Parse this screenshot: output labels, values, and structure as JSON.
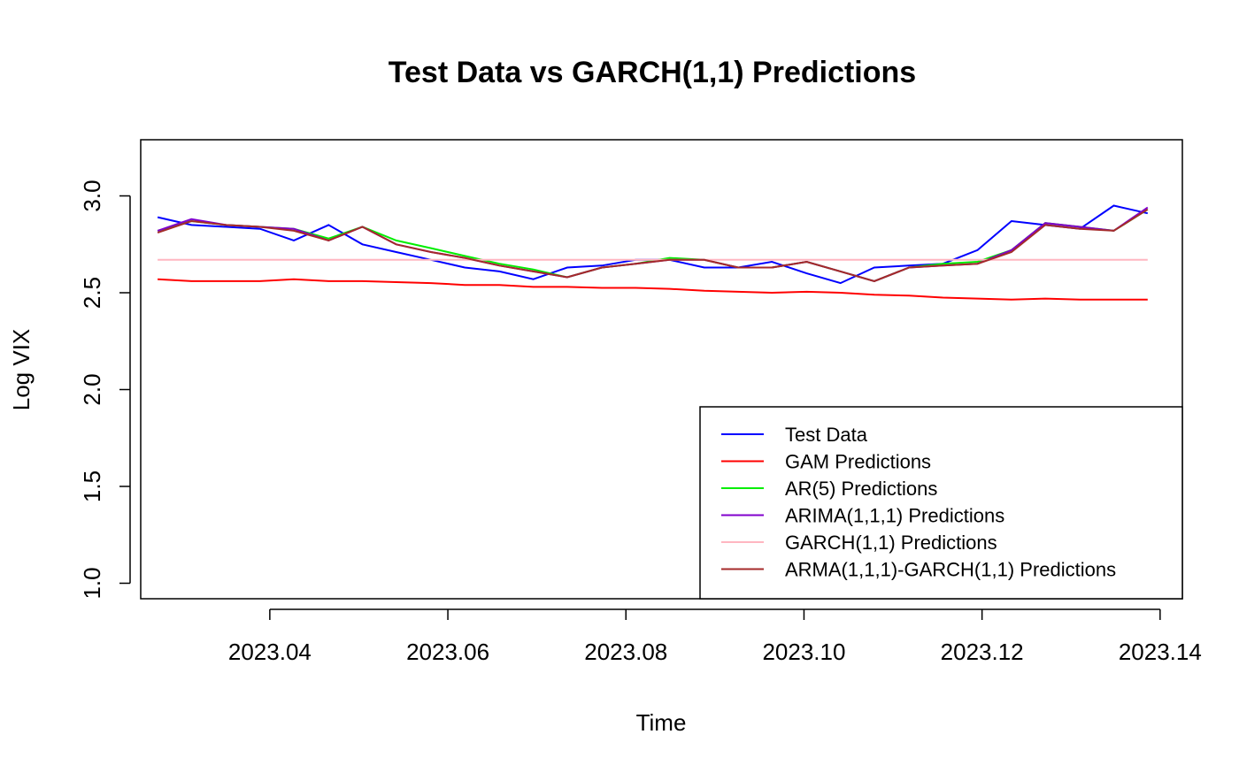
{
  "chart_data": {
    "type": "line",
    "title": "Test Data vs GARCH(1,1) Predictions",
    "xlabel": "Time",
    "ylabel": "Log VIX",
    "xlim": [
      2023.0255,
      2023.1425
    ],
    "ylim": [
      0.92,
      3.29
    ],
    "xticks": [
      2023.04,
      2023.06,
      2023.08,
      2023.1,
      2023.12,
      2023.14
    ],
    "xtick_labels": [
      "2023.04",
      "2023.06",
      "2023.08",
      "2023.10",
      "2023.12",
      "2023.14"
    ],
    "yticks": [
      1.0,
      1.5,
      2.0,
      2.5,
      3.0
    ],
    "ytick_labels": [
      "1.0",
      "1.5",
      "2.0",
      "2.5",
      "3.0"
    ],
    "grid": false,
    "legend_position": "bottom-right",
    "x": [
      2023.0274,
      2023.0312,
      2023.0351,
      2023.0389,
      2023.0427,
      2023.0466,
      2023.0504,
      2023.0542,
      2023.0581,
      2023.0619,
      2023.0658,
      2023.0696,
      2023.0734,
      2023.0773,
      2023.0811,
      2023.0849,
      2023.0888,
      2023.0926,
      2023.0964,
      2023.1003,
      2023.1041,
      2023.1079,
      2023.1118,
      2023.1156,
      2023.1195,
      2023.1233,
      2023.1271,
      2023.131,
      2023.1348,
      2023.1386
    ],
    "series": [
      {
        "name": "Test Data",
        "color": "#0000ff",
        "values": [
          2.89,
          2.85,
          2.84,
          2.83,
          2.77,
          2.85,
          2.75,
          2.71,
          2.67,
          2.63,
          2.61,
          2.57,
          2.63,
          2.64,
          2.67,
          2.67,
          2.63,
          2.63,
          2.66,
          2.6,
          2.55,
          2.63,
          2.64,
          2.65,
          2.72,
          2.87,
          2.85,
          2.83,
          2.95,
          2.91
        ]
      },
      {
        "name": "GAM Predictions",
        "color": "#ff0000",
        "values": [
          2.57,
          2.56,
          2.56,
          2.56,
          2.57,
          2.56,
          2.56,
          2.555,
          2.55,
          2.54,
          2.54,
          2.53,
          2.53,
          2.525,
          2.525,
          2.52,
          2.51,
          2.505,
          2.5,
          2.505,
          2.5,
          2.49,
          2.485,
          2.475,
          2.47,
          2.465,
          2.47,
          2.465,
          2.465,
          2.465
        ]
      },
      {
        "name": "AR(5) Predictions",
        "color": "#00ee00",
        "values": [
          2.82,
          2.87,
          2.85,
          2.84,
          2.83,
          2.78,
          2.84,
          2.77,
          2.73,
          2.69,
          2.65,
          2.62,
          2.58,
          2.63,
          2.65,
          2.68,
          2.67,
          2.63,
          2.63,
          2.66,
          2.61,
          2.56,
          2.63,
          2.65,
          2.66,
          2.72,
          2.86,
          2.84,
          2.82,
          2.93
        ]
      },
      {
        "name": "ARIMA(1,1,1) Predictions",
        "color": "#8000cc",
        "values": [
          2.82,
          2.88,
          2.85,
          2.84,
          2.83,
          2.77,
          2.84,
          2.75,
          2.71,
          2.68,
          2.64,
          2.61,
          2.58,
          2.63,
          2.65,
          2.67,
          2.67,
          2.63,
          2.63,
          2.66,
          2.61,
          2.56,
          2.63,
          2.64,
          2.65,
          2.72,
          2.86,
          2.84,
          2.82,
          2.94
        ]
      },
      {
        "name": "GARCH(1,1) Predictions",
        "color": "#ffb6c1",
        "values": [
          2.67,
          2.67,
          2.67,
          2.67,
          2.67,
          2.67,
          2.67,
          2.67,
          2.67,
          2.67,
          2.67,
          2.67,
          2.67,
          2.67,
          2.67,
          2.67,
          2.67,
          2.67,
          2.67,
          2.67,
          2.67,
          2.67,
          2.67,
          2.67,
          2.67,
          2.67,
          2.67,
          2.67,
          2.67,
          2.67
        ]
      },
      {
        "name": "ARMA(1,1,1)-GARCH(1,1) Predictions",
        "color": "#a52a2a",
        "values": [
          2.81,
          2.87,
          2.85,
          2.84,
          2.82,
          2.77,
          2.84,
          2.75,
          2.71,
          2.68,
          2.64,
          2.61,
          2.58,
          2.63,
          2.65,
          2.67,
          2.67,
          2.63,
          2.63,
          2.66,
          2.61,
          2.56,
          2.63,
          2.64,
          2.65,
          2.71,
          2.85,
          2.83,
          2.82,
          2.93
        ]
      }
    ]
  }
}
